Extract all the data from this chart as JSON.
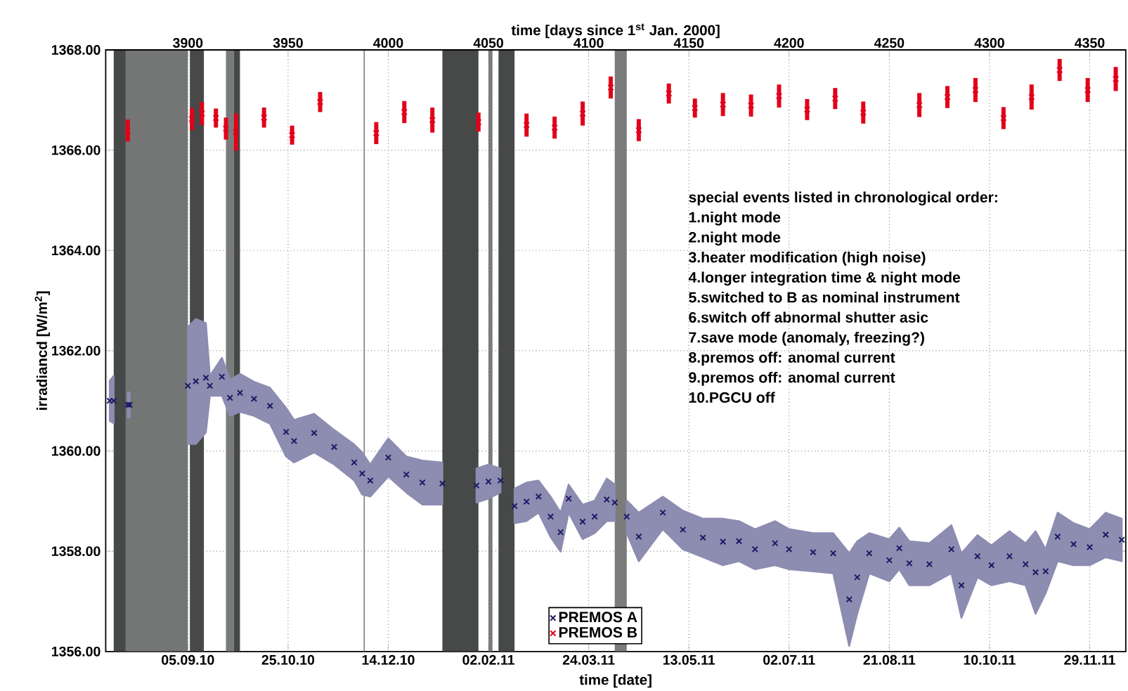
{
  "chart_data": {
    "type": "scatter",
    "xlabel": "time [date]",
    "x2label": "time [days since 1$^{st}$ Jan. 2000]",
    "ylabel": "irradiancd [W/m$^{2}$]",
    "xlim": [
      "2010-07-26",
      "2011-12-17"
    ],
    "x2lim": [
      3859,
      4368
    ],
    "ylim": [
      1356,
      1368
    ],
    "xticks": [
      {
        "value": "2010-09-05",
        "label": "05.09.10"
      },
      {
        "value": "2010-10-25",
        "label": "25.10.10"
      },
      {
        "value": "2010-12-14",
        "label": "14.12.10"
      },
      {
        "value": "2011-02-02",
        "label": "02.02.11"
      },
      {
        "value": "2011-03-24",
        "label": "24.03.11"
      },
      {
        "value": "2011-05-13",
        "label": "13.05.11"
      },
      {
        "value": "2011-07-02",
        "label": "02.07.11"
      },
      {
        "value": "2011-08-21",
        "label": "21.08.11"
      },
      {
        "value": "2011-10-10",
        "label": "10.10.11"
      },
      {
        "value": "2011-11-29",
        "label": "29.11.11"
      }
    ],
    "x2ticks": [
      3900,
      3950,
      4000,
      4050,
      4100,
      4150,
      4200,
      4250,
      4300,
      4350
    ],
    "yticks": [
      {
        "value": 1356,
        "label": "1356.00"
      },
      {
        "value": 1358,
        "label": "1358.00"
      },
      {
        "value": 1360,
        "label": "1360.00"
      },
      {
        "value": 1362,
        "label": "1362.00"
      },
      {
        "value": 1364,
        "label": "1364.00"
      },
      {
        "value": 1366,
        "label": "1366.00"
      },
      {
        "value": 1368,
        "label": "1368.00"
      }
    ],
    "grid": true,
    "legend": "bottom",
    "marker": "cross",
    "series": [
      {
        "name": "PREMOS A",
        "color": "#1c1a63",
        "x": [
          "2010-07-28",
          "2010-07-30",
          "2010-08-02",
          "2010-08-06",
          "2010-08-07",
          "2010-08-21",
          "2010-09-05",
          "2010-09-09",
          "2010-09-14",
          "2010-09-16",
          "2010-09-22",
          "2010-09-26",
          "2010-10-01",
          "2010-10-08",
          "2010-10-16",
          "2010-10-24",
          "2010-10-28",
          "2010-11-07",
          "2010-11-17",
          "2010-11-27",
          "2010-12-01",
          "2010-12-05",
          "2010-12-14",
          "2010-12-23",
          "2010-12-31",
          "2011-01-10",
          "2011-01-19",
          "2011-01-27",
          "2011-02-02",
          "2011-02-08",
          "2011-02-11",
          "2011-02-15",
          "2011-02-21",
          "2011-02-27",
          "2011-03-05",
          "2011-03-10",
          "2011-03-14",
          "2011-03-21",
          "2011-03-27",
          "2011-04-02",
          "2011-04-06",
          "2011-04-09",
          "2011-04-12",
          "2011-04-18",
          "2011-04-30",
          "2011-05-10",
          "2011-05-20",
          "2011-05-30",
          "2011-06-07",
          "2011-06-15",
          "2011-06-25",
          "2011-07-02",
          "2011-07-14",
          "2011-07-24",
          "2011-08-01",
          "2011-08-05",
          "2011-08-11",
          "2011-08-21",
          "2011-08-26",
          "2011-08-31",
          "2011-09-10",
          "2011-09-21",
          "2011-09-26",
          "2011-10-04",
          "2011-10-11",
          "2011-10-20",
          "2011-10-28",
          "2011-11-02",
          "2011-11-07",
          "2011-11-13",
          "2011-11-21",
          "2011-11-29",
          "2011-12-07",
          "2011-12-15"
        ],
        "values": [
          1361.0,
          1361.0,
          null,
          1360.92,
          1360.92,
          null,
          1361.3,
          1361.39,
          1361.46,
          1361.3,
          1361.48,
          1361.06,
          1361.16,
          1361.04,
          1360.9,
          1360.38,
          1360.2,
          1360.36,
          1360.08,
          1359.77,
          1359.55,
          1359.41,
          1359.87,
          1359.53,
          1359.37,
          1359.35,
          null,
          1359.31,
          1359.39,
          1359.41,
          null,
          1358.9,
          1358.99,
          1359.09,
          1358.69,
          1358.38,
          1359.05,
          1358.59,
          1358.69,
          1359.03,
          1358.97,
          null,
          1358.69,
          1358.29,
          1358.77,
          1358.43,
          1358.27,
          1358.19,
          1358.2,
          1358.04,
          1358.16,
          1358.04,
          1357.98,
          1357.96,
          1357.04,
          1357.48,
          1357.96,
          1357.82,
          1358.06,
          1357.76,
          1357.74,
          1358.04,
          1357.32,
          1357.9,
          1357.72,
          1357.9,
          1357.74,
          1357.58,
          1357.6,
          1358.29,
          1358.14,
          1358.08,
          1358.33,
          1358.23
        ],
        "lower": [
          1360.6,
          1360.55,
          null,
          1360.67,
          1360.67,
          null,
          1360.14,
          1360.14,
          1360.37,
          1361.1,
          1361.1,
          1360.7,
          1360.78,
          1360.7,
          1360.54,
          1359.89,
          1359.77,
          1359.97,
          1359.73,
          1359.41,
          1359.13,
          1359.09,
          1359.49,
          1359.17,
          1358.93,
          1358.93,
          null,
          1358.97,
          1359.05,
          1359.17,
          null,
          1358.56,
          1358.6,
          1358.77,
          1358.28,
          1357.99,
          1358.77,
          1358.24,
          1358.36,
          1358.6,
          1358.6,
          null,
          1358.36,
          1357.8,
          1358.44,
          1358.04,
          1357.88,
          1357.72,
          1357.8,
          1357.64,
          1357.72,
          1357.64,
          1357.6,
          1357.56,
          1356.11,
          1356.75,
          1357.56,
          1357.4,
          1357.64,
          1357.32,
          1357.32,
          1357.56,
          1356.67,
          1357.48,
          1357.32,
          1357.4,
          1357.32,
          1356.75,
          1357.16,
          1357.8,
          1357.72,
          1357.72,
          1357.88,
          1357.8
        ],
        "upper": [
          1361.4,
          1361.5,
          null,
          1361.17,
          1361.17,
          null,
          1362.47,
          1362.63,
          1362.55,
          1361.5,
          1361.86,
          1361.42,
          1361.54,
          1361.38,
          1361.26,
          1360.86,
          1360.62,
          1360.74,
          1360.42,
          1360.13,
          1359.97,
          1359.73,
          1360.25,
          1359.89,
          1359.81,
          1359.77,
          null,
          1359.65,
          1359.73,
          1359.65,
          null,
          1359.25,
          1359.37,
          1359.41,
          1359.09,
          1358.77,
          1359.33,
          1358.93,
          1359.01,
          1359.45,
          1359.33,
          null,
          1359.01,
          1358.77,
          1359.09,
          1358.81,
          1358.65,
          1358.65,
          1358.6,
          1358.44,
          1358.6,
          1358.44,
          1358.36,
          1358.36,
          1357.96,
          1358.2,
          1358.36,
          1358.24,
          1358.47,
          1358.2,
          1358.16,
          1358.52,
          1357.96,
          1358.32,
          1358.12,
          1358.4,
          1358.16,
          1358.4,
          1358.04,
          1358.77,
          1358.56,
          1358.44,
          1358.77,
          1358.65
        ]
      },
      {
        "name": "PREMOS B",
        "color": "#e1001a",
        "x": [
          "2010-08-06",
          "2010-09-07",
          "2010-09-12",
          "2010-09-19",
          "2010-09-24",
          "2010-09-29",
          "2010-10-13",
          "2010-10-27",
          "2010-11-10",
          "2010-12-08",
          "2010-12-22",
          "2011-01-05",
          "2011-01-28",
          "2011-02-21",
          "2011-03-07",
          "2011-03-21",
          "2011-04-04",
          "2011-04-18",
          "2011-05-03",
          "2011-05-16",
          "2011-05-30",
          "2011-06-13",
          "2011-06-27",
          "2011-07-11",
          "2011-07-25",
          "2011-08-08",
          "2011-09-05",
          "2011-09-19",
          "2011-10-03",
          "2011-10-17",
          "2011-10-31",
          "2011-11-14",
          "2011-11-28",
          "2011-12-12"
        ],
        "values": [
          1366.39,
          1366.62,
          1366.73,
          1366.64,
          1366.43,
          1366.36,
          1366.65,
          1366.3,
          1366.96,
          1366.34,
          1366.76,
          1366.6,
          1366.56,
          1366.5,
          1366.45,
          1366.73,
          1367.25,
          1366.4,
          1367.13,
          1366.84,
          1366.91,
          1366.89,
          1367.08,
          1366.81,
          1367.03,
          1366.75,
          1366.9,
          1367.06,
          1367.2,
          1366.64,
          1367.06,
          1367.6,
          1367.2,
          1367.42
        ],
        "errors": [
          0.22,
          0.22,
          0.23,
          0.19,
          0.22,
          0.37,
          0.2,
          0.19,
          0.2,
          0.22,
          0.22,
          0.25,
          0.19,
          0.23,
          0.22,
          0.24,
          0.22,
          0.22,
          0.2,
          0.19,
          0.23,
          0.22,
          0.23,
          0.21,
          0.21,
          0.22,
          0.24,
          0.22,
          0.24,
          0.22,
          0.25,
          0.22,
          0.24,
          0.24
        ]
      }
    ],
    "bands": [
      {
        "axis": "x",
        "from": "2010-07-30",
        "to": "2010-08-05",
        "color": "#474948"
      },
      {
        "axis": "x",
        "from": "2010-08-05",
        "to": "2010-09-05",
        "color": "#747675"
      },
      {
        "axis": "x",
        "from": "2010-09-06",
        "to": "2010-09-13",
        "color": "#474948"
      },
      {
        "axis": "x",
        "from": "2010-09-24",
        "to": "2010-09-28",
        "color": "#7a7c7b"
      },
      {
        "axis": "x",
        "from": "2010-09-28",
        "to": "2010-10-01",
        "color": "#474948"
      },
      {
        "axis": "x",
        "from": "2011-01-10",
        "to": "2011-01-28",
        "color": "#474948"
      },
      {
        "axis": "x",
        "from": "2011-02-02",
        "to": "2011-02-04",
        "color": "#7a7c7b"
      },
      {
        "axis": "x",
        "from": "2011-02-07",
        "to": "2011-02-15",
        "color": "#474948"
      },
      {
        "axis": "x",
        "from": "2011-04-06",
        "to": "2011-04-12",
        "color": "#7a7c7b"
      }
    ],
    "ref_lines": [
      {
        "axis": "x",
        "value": "2010-12-02",
        "color": "#7a7c7b"
      }
    ],
    "annotations": [
      "special events listed in chronological order:",
      "1.night mode",
      "2.night mode",
      "3.heater modification (high noise)",
      "4.longer integration time & night mode",
      "5.switched to B as nominal instrument",
      "6.switch off abnormal shutter asic",
      "7.save mode (anomaly, freezing?)",
      "8.premos off: anomal current",
      "9.premos off: anomal current",
      "10.PGCU off"
    ]
  }
}
